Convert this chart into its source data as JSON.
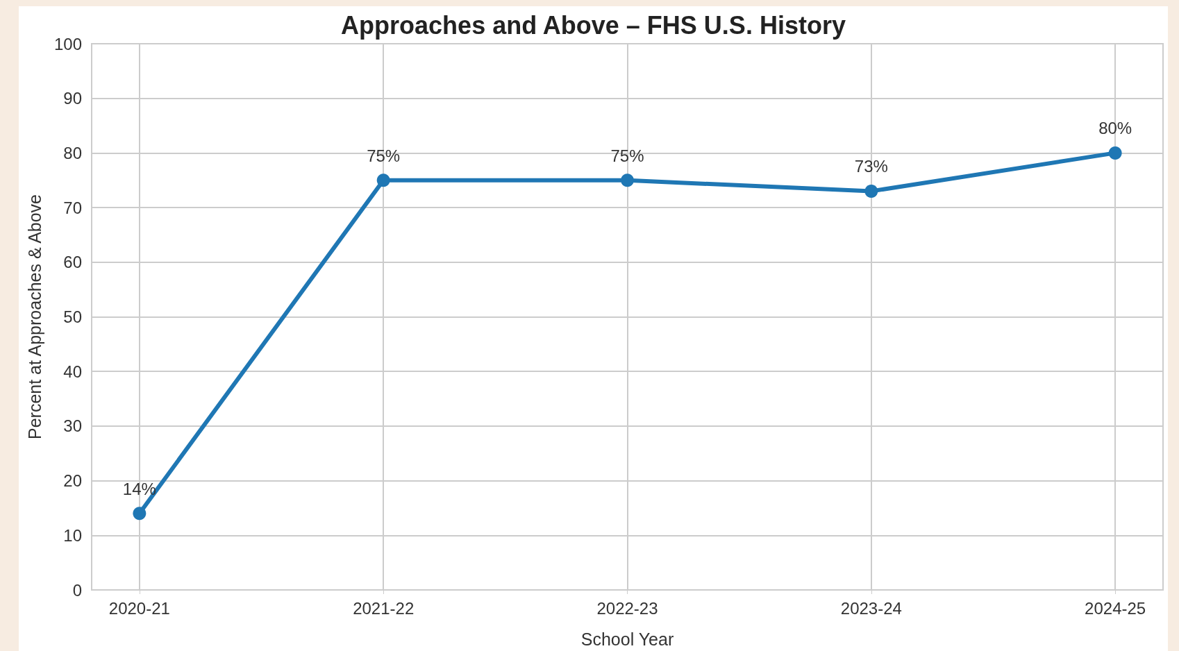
{
  "chart_data": {
    "type": "line",
    "title": "Approaches and Above – FHS U.S. History",
    "xlabel": "School Year",
    "ylabel": "Percent at Approaches & Above",
    "categories": [
      "2020-21",
      "2021-22",
      "2022-23",
      "2023-24",
      "2024-25"
    ],
    "series": [
      {
        "color": "#1f77b4",
        "values": [
          14,
          75,
          75,
          73,
          80
        ],
        "value_labels": [
          "14%",
          "75%",
          "75%",
          "73%",
          "80%"
        ]
      }
    ],
    "ylim": [
      0,
      100
    ],
    "yticks": [
      0,
      10,
      20,
      30,
      40,
      50,
      60,
      70,
      80,
      90,
      100
    ],
    "grid": true,
    "marker": "circle",
    "line_style": "solid"
  }
}
